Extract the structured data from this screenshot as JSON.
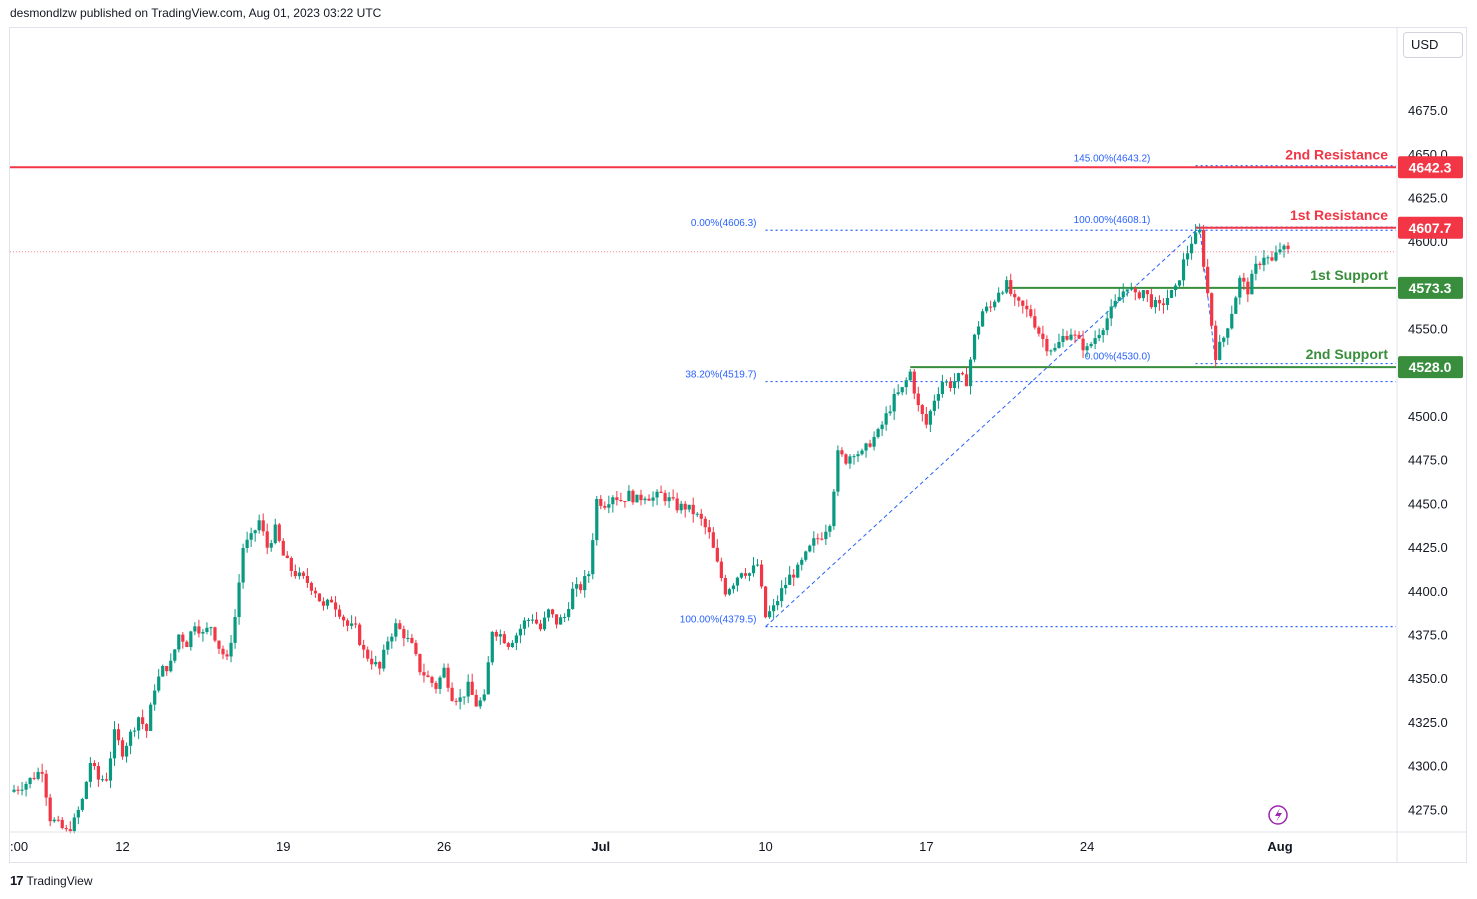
{
  "header": {
    "published_text": "desmondlzw published on TradingView.com, Aug 01, 2023 03:22 UTC"
  },
  "currency": "USD",
  "footer": {
    "logo_mark": "17",
    "logo_text": "TradingView"
  },
  "lightning_icon": "lightning-icon",
  "colors": {
    "up": "#089981",
    "down": "#f23645",
    "resistance": "#f23645",
    "support": "#388e3c",
    "fib": "#2962ff",
    "text": "#131722",
    "grid": "#e0e3eb"
  },
  "chart_data": {
    "type": "candlestick",
    "yaxis": {
      "ylim": [
        4262,
        4722
      ],
      "ticks": [
        "4675.0",
        "4650.0",
        "4625.0",
        "4600.0",
        "4550.0",
        "4500.0",
        "4475.0",
        "4450.0",
        "4425.0",
        "4400.0",
        "4375.0",
        "4350.0",
        "4325.0",
        "4300.0",
        "4275.0"
      ],
      "tick_values": [
        4675,
        4650,
        4625,
        4600,
        4550,
        4500,
        4475,
        4450,
        4425,
        4400,
        4375,
        4350,
        4325,
        4300,
        4275
      ]
    },
    "xaxis": {
      "labels": [
        {
          "text": ":00",
          "idx": 0
        },
        {
          "text": "12",
          "idx": 28
        },
        {
          "text": "19",
          "idx": 68
        },
        {
          "text": "26",
          "idx": 108
        },
        {
          "text": "Jul",
          "idx": 147
        },
        {
          "text": "10",
          "idx": 188
        },
        {
          "text": "17",
          "idx": 228
        },
        {
          "text": "24",
          "idx": 268
        },
        {
          "text": "Aug",
          "idx": 316
        }
      ]
    },
    "levels": [
      {
        "name": "2nd Resistance",
        "value": "4642.3",
        "price": 4642.3,
        "kind": "resistance",
        "from_idx": 0
      },
      {
        "name": "1st Resistance",
        "value": "4607.7",
        "price": 4607.7,
        "kind": "resistance",
        "from_idx": 295
      },
      {
        "name": "1st Support",
        "value": "4573.3",
        "price": 4573.3,
        "kind": "support",
        "from_idx": 248
      },
      {
        "name": "2nd Support",
        "value": "4528.0",
        "price": 4528.0,
        "kind": "support",
        "from_idx": 224
      }
    ],
    "fib_levels": [
      {
        "label": "145.00%(4643.2)",
        "price": 4643.2,
        "label_idx": 283,
        "from_idx": 295
      },
      {
        "label": "100.00%(4608.1)",
        "label_idx": 283,
        "price": 4608.1,
        "from_idx": 295
      },
      {
        "label": "0.00%(4606.3)",
        "label_idx": 185,
        "price": 4606.3,
        "from_idx": 188
      },
      {
        "label": "0.00%(4530.0)",
        "label_idx": 283,
        "price": 4530.0,
        "from_idx": 295
      },
      {
        "label": "38.20%(4519.7)",
        "label_idx": 185,
        "price": 4519.7,
        "from_idx": 188
      },
      {
        "label": "100.00%(4379.5)",
        "label_idx": 185,
        "price": 4379.5,
        "from_idx": 188
      }
    ],
    "current_price": 4594,
    "keypoints": [
      [
        0,
        4285
      ],
      [
        4,
        4290
      ],
      [
        8,
        4298
      ],
      [
        10,
        4270
      ],
      [
        14,
        4262
      ],
      [
        16,
        4268
      ],
      [
        18,
        4280
      ],
      [
        20,
        4302
      ],
      [
        22,
        4292
      ],
      [
        24,
        4293
      ],
      [
        26,
        4318
      ],
      [
        28,
        4308
      ],
      [
        30,
        4318
      ],
      [
        32,
        4328
      ],
      [
        34,
        4320
      ],
      [
        36,
        4345
      ],
      [
        38,
        4355
      ],
      [
        40,
        4358
      ],
      [
        42,
        4375
      ],
      [
        44,
        4370
      ],
      [
        46,
        4382
      ],
      [
        48,
        4375
      ],
      [
        50,
        4380
      ],
      [
        52,
        4368
      ],
      [
        54,
        4360
      ],
      [
        56,
        4385
      ],
      [
        58,
        4425
      ],
      [
        60,
        4430
      ],
      [
        62,
        4440
      ],
      [
        64,
        4425
      ],
      [
        66,
        4435
      ],
      [
        68,
        4420
      ],
      [
        70,
        4412
      ],
      [
        72,
        4408
      ],
      [
        74,
        4405
      ],
      [
        76,
        4400
      ],
      [
        78,
        4390
      ],
      [
        80,
        4395
      ],
      [
        82,
        4388
      ],
      [
        84,
        4380
      ],
      [
        86,
        4378
      ],
      [
        88,
        4365
      ],
      [
        90,
        4360
      ],
      [
        92,
        4355
      ],
      [
        94,
        4372
      ],
      [
        96,
        4380
      ],
      [
        98,
        4375
      ],
      [
        100,
        4368
      ],
      [
        102,
        4355
      ],
      [
        104,
        4350
      ],
      [
        106,
        4345
      ],
      [
        108,
        4355
      ],
      [
        110,
        4340
      ],
      [
        112,
        4338
      ],
      [
        114,
        4345
      ],
      [
        116,
        4335
      ],
      [
        118,
        4338
      ],
      [
        120,
        4378
      ],
      [
        122,
        4375
      ],
      [
        124,
        4370
      ],
      [
        126,
        4375
      ],
      [
        128,
        4382
      ],
      [
        130,
        4385
      ],
      [
        132,
        4378
      ],
      [
        134,
        4388
      ],
      [
        136,
        4382
      ],
      [
        138,
        4385
      ],
      [
        140,
        4400
      ],
      [
        142,
        4402
      ],
      [
        144,
        4410
      ],
      [
        146,
        4452
      ],
      [
        148,
        4450
      ],
      [
        150,
        4455
      ],
      [
        152,
        4452
      ],
      [
        154,
        4455
      ],
      [
        156,
        4452
      ],
      [
        158,
        4455
      ],
      [
        160,
        4453
      ],
      [
        162,
        4455
      ],
      [
        164,
        4452
      ],
      [
        166,
        4448
      ],
      [
        168,
        4448
      ],
      [
        170,
        4445
      ],
      [
        172,
        4440
      ],
      [
        174,
        4432
      ],
      [
        176,
        4415
      ],
      [
        178,
        4400
      ],
      [
        180,
        4405
      ],
      [
        182,
        4412
      ],
      [
        184,
        4410
      ],
      [
        186,
        4415
      ],
      [
        188,
        4385
      ],
      [
        190,
        4390
      ],
      [
        192,
        4400
      ],
      [
        194,
        4408
      ],
      [
        196,
        4412
      ],
      [
        198,
        4420
      ],
      [
        200,
        4428
      ],
      [
        202,
        4432
      ],
      [
        204,
        4440
      ],
      [
        206,
        4478
      ],
      [
        208,
        4475
      ],
      [
        210,
        4480
      ],
      [
        212,
        4478
      ],
      [
        214,
        4485
      ],
      [
        216,
        4490
      ],
      [
        218,
        4500
      ],
      [
        220,
        4510
      ],
      [
        222,
        4515
      ],
      [
        224,
        4525
      ],
      [
        226,
        4505
      ],
      [
        228,
        4495
      ],
      [
        230,
        4510
      ],
      [
        232,
        4520
      ],
      [
        234,
        4518
      ],
      [
        236,
        4522
      ],
      [
        238,
        4520
      ],
      [
        240,
        4545
      ],
      [
        242,
        4560
      ],
      [
        244,
        4562
      ],
      [
        246,
        4572
      ],
      [
        248,
        4575
      ],
      [
        250,
        4565
      ],
      [
        252,
        4562
      ],
      [
        254,
        4558
      ],
      [
        256,
        4548
      ],
      [
        258,
        4540
      ],
      [
        260,
        4538
      ],
      [
        262,
        4545
      ],
      [
        264,
        4548
      ],
      [
        266,
        4542
      ],
      [
        268,
        4538
      ],
      [
        270,
        4545
      ],
      [
        272,
        4552
      ],
      [
        274,
        4560
      ],
      [
        276,
        4568
      ],
      [
        278,
        4575
      ],
      [
        280,
        4568
      ],
      [
        282,
        4572
      ],
      [
        284,
        4565
      ],
      [
        286,
        4562
      ],
      [
        288,
        4568
      ],
      [
        290,
        4572
      ],
      [
        292,
        4588
      ],
      [
        294,
        4600
      ],
      [
        296,
        4605
      ],
      [
        298,
        4570
      ],
      [
        300,
        4535
      ],
      [
        302,
        4545
      ],
      [
        304,
        4560
      ],
      [
        306,
        4578
      ],
      [
        308,
        4572
      ],
      [
        310,
        4585
      ],
      [
        312,
        4592
      ],
      [
        314,
        4588
      ],
      [
        316,
        4596
      ],
      [
        318,
        4594
      ]
    ]
  }
}
